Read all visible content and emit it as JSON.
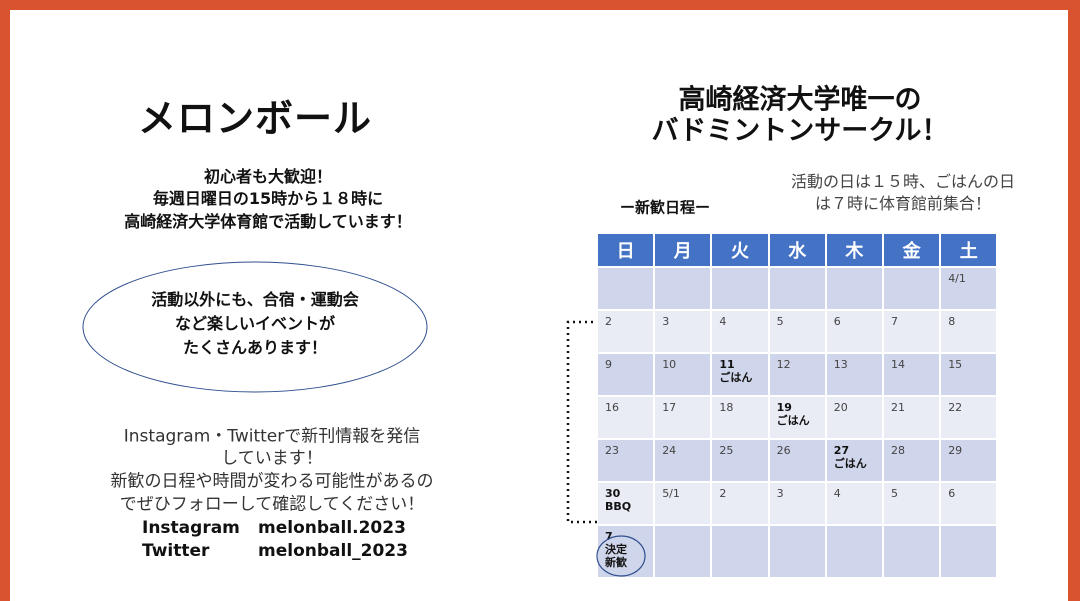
{
  "left": {
    "title": "メロンボール",
    "intro": [
      "初心者も大歓迎！",
      "毎週日曜日の15時から１８時に",
      "高崎経済大学体育館で活動しています！"
    ],
    "bubble": [
      "活動以外にも、合宿・運動会",
      "など楽しいイベントが",
      "たくさんあります！"
    ],
    "info": [
      "Instagram・Twitterで新刊情報を発信",
      "しています！",
      "新歓の日程や時間が変わる可能性があるの",
      "でぜひフォローして確認してください！"
    ],
    "accounts": [
      {
        "service": "Instagram",
        "handle": "melonball.2023"
      },
      {
        "service": "Twitter",
        "handle": "melonball_2023"
      }
    ]
  },
  "right": {
    "heading": [
      "高崎経済大学唯一の",
      "バドミントンサークル！"
    ],
    "note": [
      "活動の日は１５時、ごはんの日",
      "は７時に体育館前集合！"
    ],
    "schedule_title": "ー新歓日程ー",
    "calendar": {
      "weekdays": [
        "日",
        "月",
        "火",
        "水",
        "木",
        "金",
        "土"
      ],
      "rows": [
        [
          null,
          null,
          null,
          null,
          null,
          null,
          "4/1"
        ],
        [
          "2",
          "3",
          "4",
          "5",
          "6",
          "7",
          "8"
        ],
        [
          "9",
          "10",
          {
            "day": "11",
            "note": [
              "ごはん"
            ]
          },
          "12",
          "13",
          "14",
          "15"
        ],
        [
          "16",
          "17",
          "18",
          {
            "day": "19",
            "note": [
              "ごはん"
            ]
          },
          "20",
          "21",
          "22"
        ],
        [
          "23",
          "24",
          "25",
          "26",
          {
            "day": "27",
            "note": [
              "ごはん"
            ]
          },
          "28",
          "29"
        ],
        [
          {
            "day": "30",
            "note": [
              "BBQ"
            ]
          },
          "5/1",
          "2",
          "3",
          "4",
          "5",
          "6"
        ],
        [
          {
            "day": "7",
            "note": [
              "決定",
              "新歓"
            ]
          },
          null,
          null,
          null,
          null,
          null,
          null
        ]
      ]
    }
  }
}
